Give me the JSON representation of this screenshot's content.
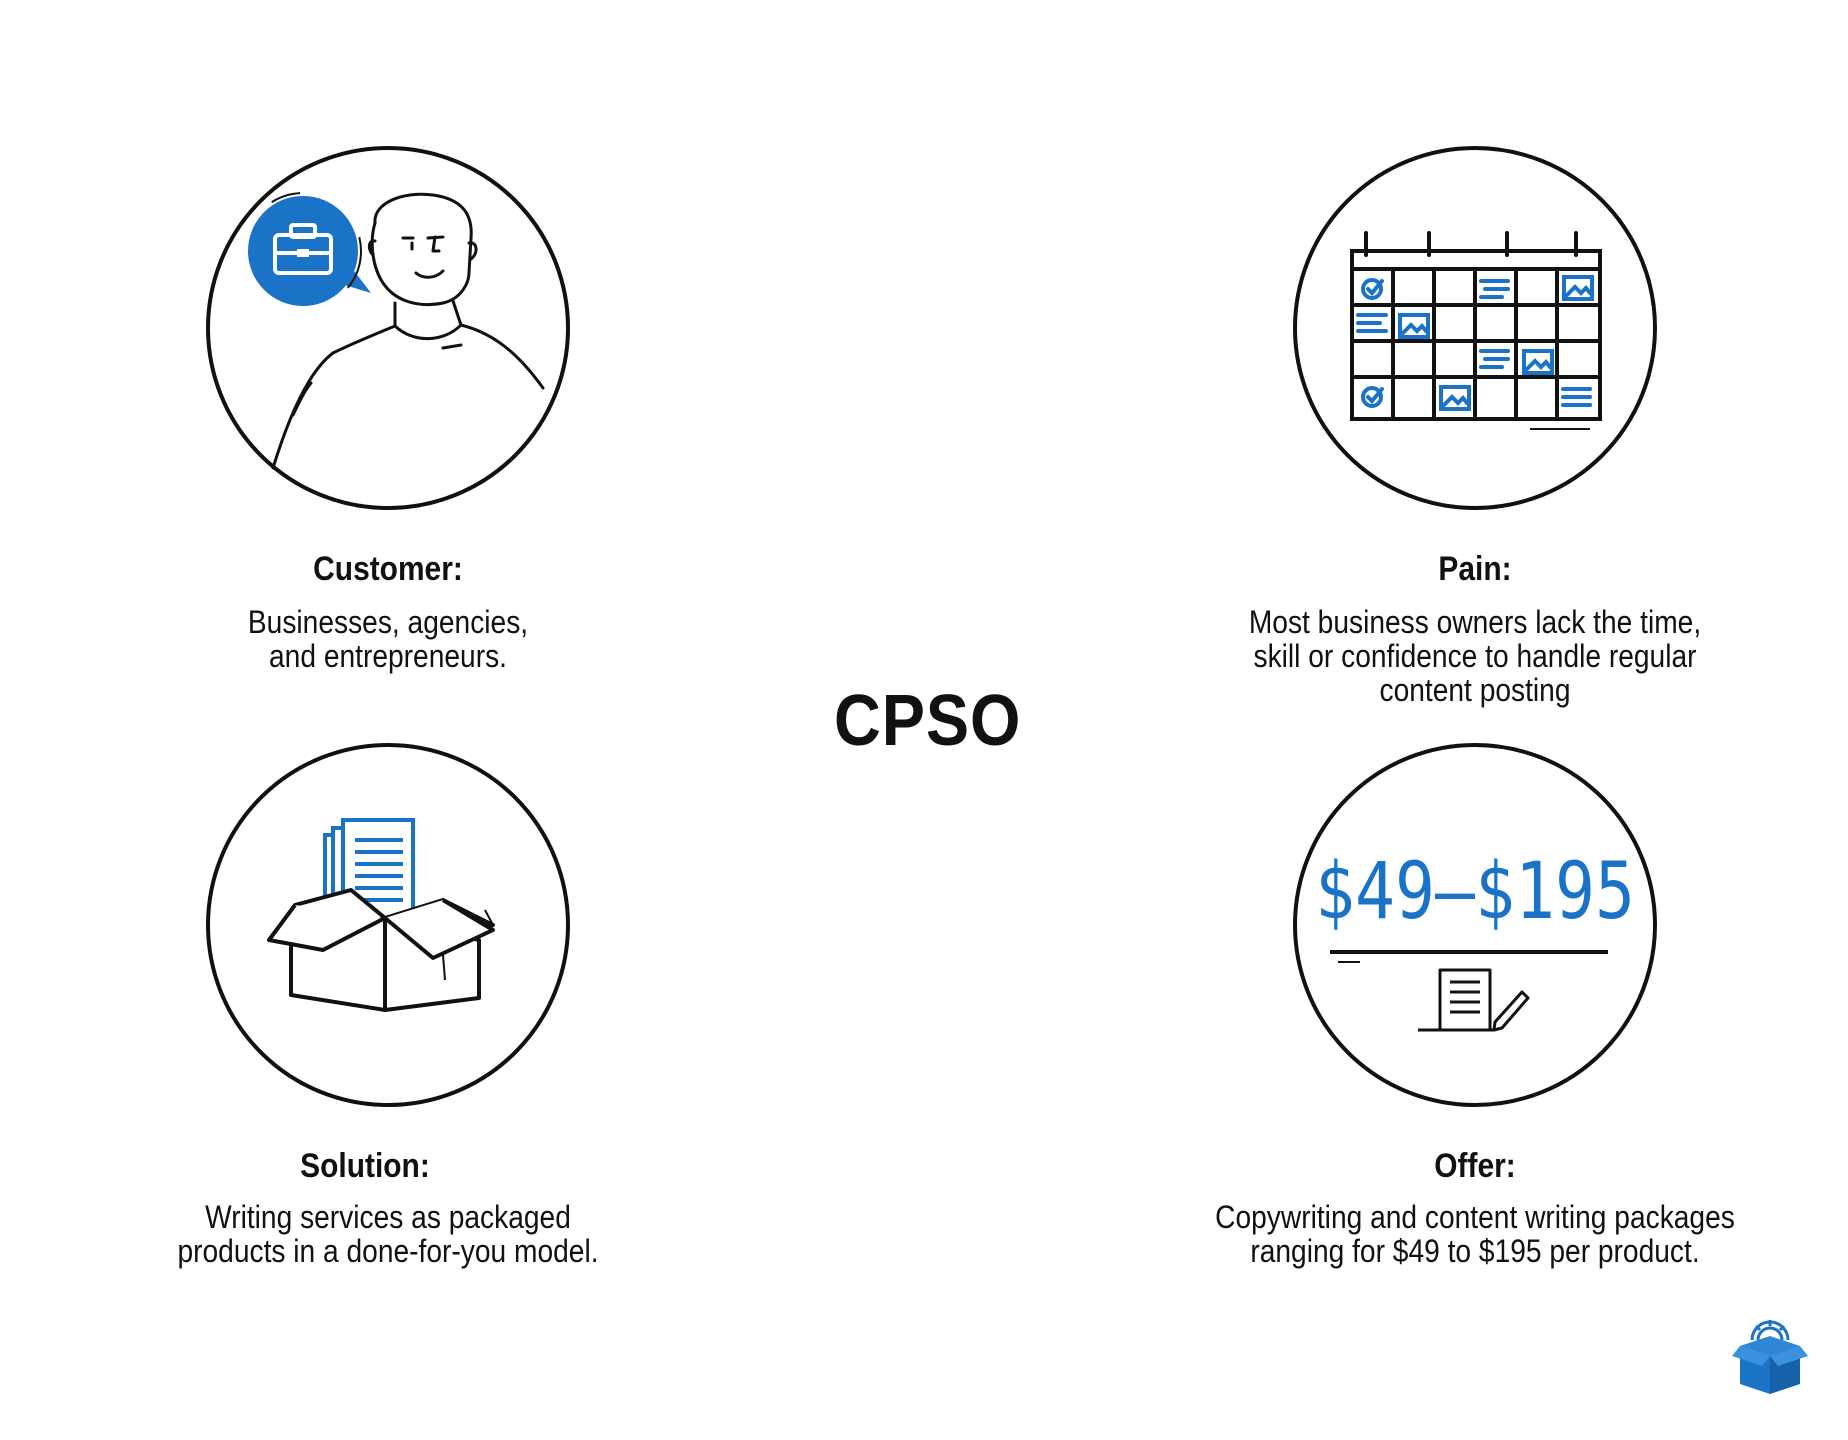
{
  "title": "CPSO",
  "customer": {
    "label": "Customer:",
    "description": "Businesses, agencies, and entrepreneurs."
  },
  "pain": {
    "label": "Pain:",
    "description": "Most business owners lack the time, skill or confidence to handle regular content posting"
  },
  "solution": {
    "label": "Solution:",
    "description": "Writing services as packaged products in a done-for-you model."
  },
  "offer": {
    "label": "Offer:",
    "description": "Copywriting and content writing packages ranging for $49 to $195 per product.",
    "price_graphic": "$49–$195"
  },
  "colors": {
    "accent": "#1a73c7",
    "ink": "#111111"
  }
}
